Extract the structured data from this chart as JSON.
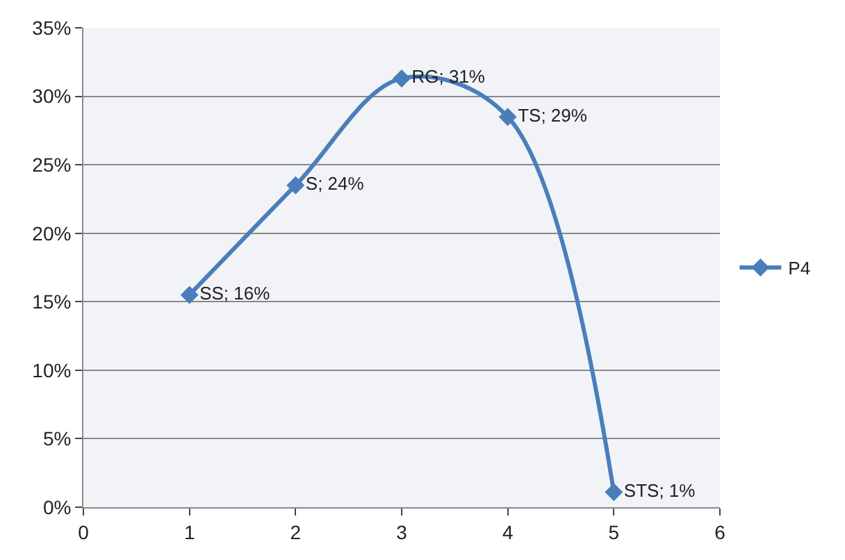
{
  "chart_data": {
    "type": "line",
    "x": [
      1,
      2,
      3,
      4,
      5
    ],
    "series": [
      {
        "name": "P4",
        "color": "#4a7ebb",
        "values": [
          15.5,
          23.5,
          31.3,
          28.5,
          1.1
        ],
        "value_labels": [
          "SS; 16%",
          "S; 24%",
          "RG; 31%",
          "TS; 29%",
          "STS; 1%"
        ]
      }
    ],
    "xlim": [
      0,
      6
    ],
    "xticks": [
      0,
      1,
      2,
      3,
      4,
      5,
      6
    ],
    "ylim": [
      0,
      35
    ],
    "yticks": [
      {
        "value": 0,
        "label": "0%"
      },
      {
        "value": 5,
        "label": "5%"
      },
      {
        "value": 10,
        "label": "10%"
      },
      {
        "value": 15,
        "label": "15%"
      },
      {
        "value": 20,
        "label": "20%"
      },
      {
        "value": 25,
        "label": "25%"
      },
      {
        "value": 30,
        "label": "30%"
      },
      {
        "value": 35,
        "label": "35%"
      }
    ],
    "grid": "y",
    "legend": "right",
    "marker": "diamond",
    "line_style": "solid"
  }
}
